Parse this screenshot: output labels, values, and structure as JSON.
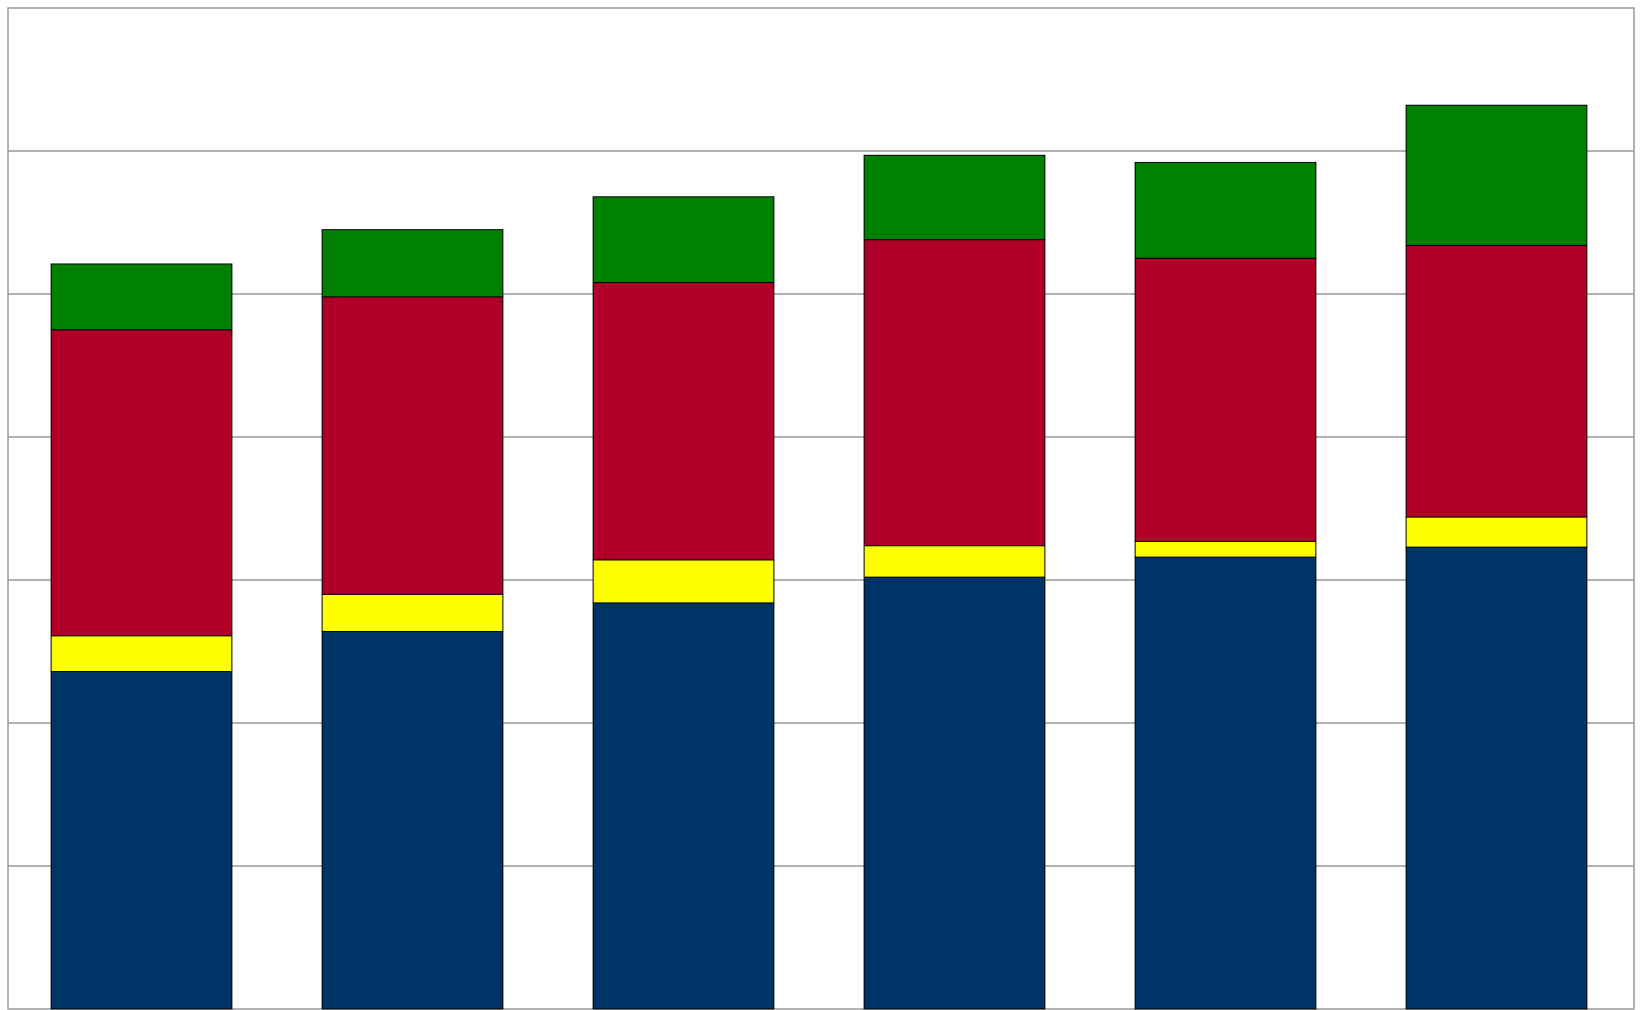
{
  "chart_data": {
    "type": "bar",
    "stacked": true,
    "categories": [
      "",
      "",
      "",
      "",
      "",
      ""
    ],
    "ylim": [
      0,
      7
    ],
    "grid": true,
    "legend": "none",
    "series": [
      {
        "color": "#003366",
        "values": [
          2.36,
          2.64,
          2.84,
          3.02,
          3.16,
          3.23
        ]
      },
      {
        "color": "#ffff00",
        "values": [
          0.25,
          0.26,
          0.3,
          0.22,
          0.11,
          0.21
        ]
      },
      {
        "color": "#b0002a",
        "values": [
          2.14,
          2.08,
          1.94,
          2.14,
          1.98,
          1.9
        ]
      },
      {
        "color": "#008000",
        "values": [
          0.46,
          0.47,
          0.6,
          0.59,
          0.67,
          0.98
        ]
      }
    ]
  }
}
